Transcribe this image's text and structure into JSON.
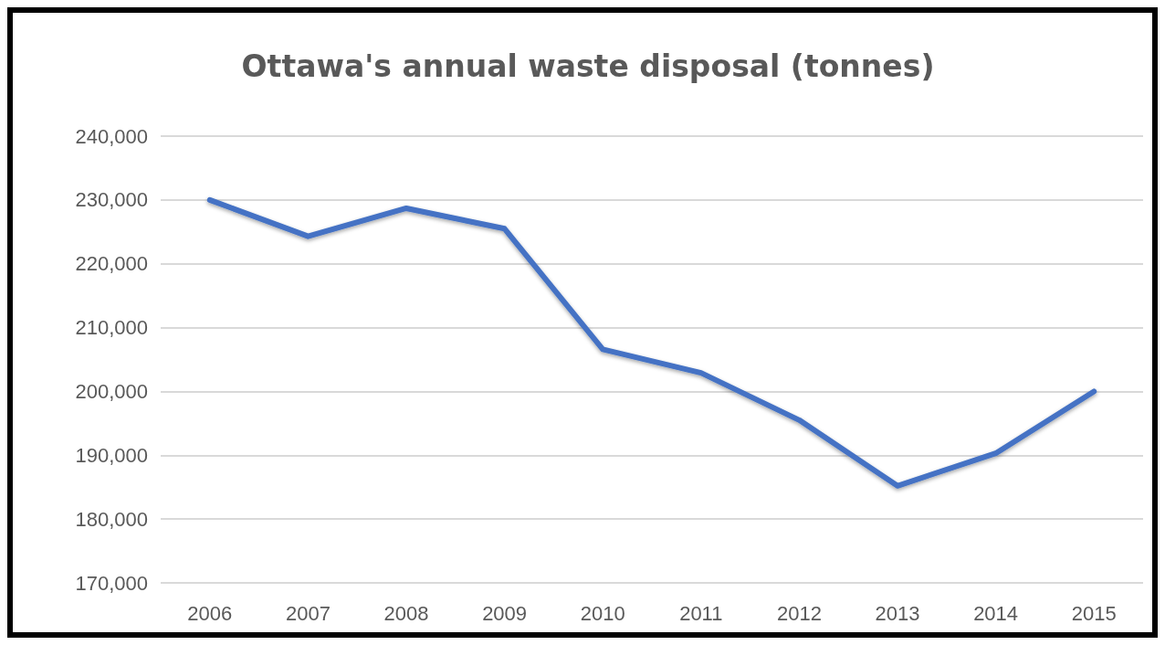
{
  "chart_data": {
    "type": "line",
    "title": "Ottawa's annual waste disposal (tonnes)",
    "categories": [
      "2006",
      "2007",
      "2008",
      "2009",
      "2010",
      "2011",
      "2012",
      "2013",
      "2014",
      "2015"
    ],
    "series": [
      {
        "color": "#4472c4",
        "values": [
          230000,
          224300,
          228700,
          225500,
          206600,
          202900,
          195500,
          185200,
          190300,
          200000
        ]
      }
    ],
    "ylim": [
      170000,
      240000
    ],
    "yticks": [
      {
        "value": 170000,
        "label": "170,000"
      },
      {
        "value": 180000,
        "label": "180,000"
      },
      {
        "value": 190000,
        "label": "190,000"
      },
      {
        "value": 200000,
        "label": "200,000"
      },
      {
        "value": 210000,
        "label": "210,000"
      },
      {
        "value": 220000,
        "label": "220,000"
      },
      {
        "value": 230000,
        "label": "230,000"
      },
      {
        "value": 240000,
        "label": "240,000"
      }
    ],
    "grid": "y",
    "marker": "none",
    "line_style": "solid"
  }
}
